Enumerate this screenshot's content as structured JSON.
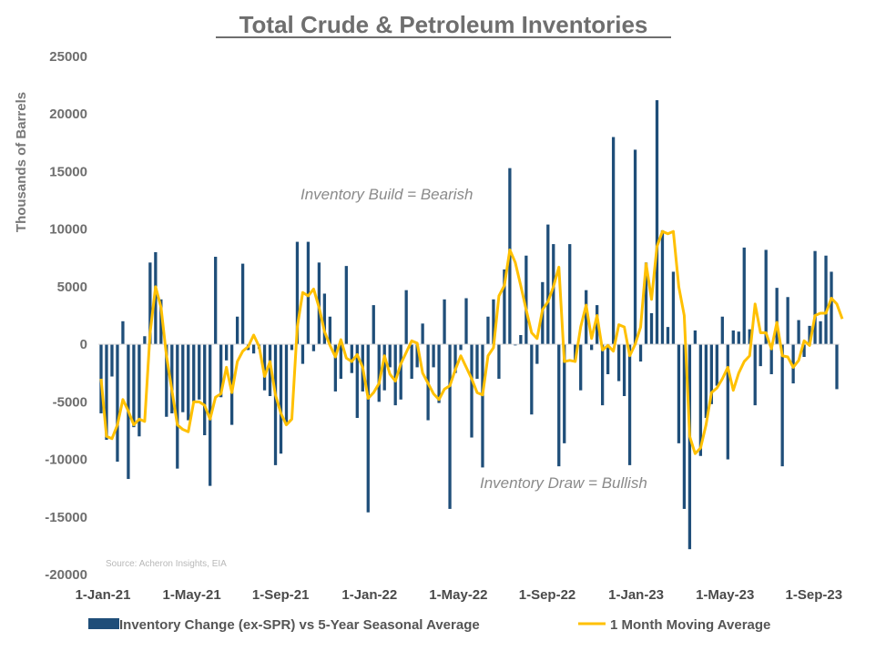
{
  "chart_data": {
    "type": "bar",
    "title": "Total Crude & Petroleum Inventories",
    "ylabel": "Thousands of Barrels",
    "xlabel": "",
    "ylim": [
      -20000,
      25000
    ],
    "yticks": [
      25000,
      20000,
      15000,
      10000,
      5000,
      0,
      -5000,
      -10000,
      -15000,
      -20000
    ],
    "xticks": [
      "1-Jan-21",
      "1-May-21",
      "1-Sep-21",
      "1-Jan-22",
      "1-May-22",
      "1-Sep-22",
      "1-Jan-23",
      "1-May-23",
      "1-Sep-23"
    ],
    "grid": false,
    "legend_position": "bottom",
    "annotations": [
      "Inventory Build = Bearish",
      "Inventory Draw = Bullish"
    ],
    "source": "Source: Acheron Insights, EIA",
    "colors": {
      "bars": "#1f4e79",
      "line": "#ffc000"
    },
    "series": [
      {
        "name": "Inventory Change (ex-SPR) vs 5-Year Seasonal Average",
        "type": "bar",
        "values": [
          -6000,
          -8300,
          -2800,
          -10200,
          2000,
          -11700,
          -7200,
          -8000,
          700,
          7100,
          8000,
          3900,
          -6300,
          -6000,
          -10800,
          -5900,
          -6600,
          -5000,
          -4800,
          -7900,
          -12300,
          7600,
          -4600,
          -1400,
          -7000,
          2400,
          7000,
          -500,
          -800,
          -400,
          -4000,
          -4500,
          -10500,
          -9500,
          -7000,
          -500,
          8900,
          -1700,
          8900,
          -600,
          7100,
          4400,
          2400,
          -4100,
          -3000,
          6800,
          -2500,
          -6400,
          -4100,
          -14600,
          3400,
          -5000,
          -4000,
          -2000,
          -5300,
          -4800,
          4700,
          -3000,
          -2000,
          1800,
          -6600,
          -2000,
          -5100,
          3900,
          -14300,
          -2500,
          -500,
          4000,
          -8100,
          -3000,
          -10700,
          2400,
          3900,
          -3000,
          6500,
          15300,
          -100,
          800,
          7700,
          -6100,
          -1700,
          5400,
          10400,
          8700,
          -10600,
          -8600,
          8700,
          -1400,
          -4000,
          4700,
          -500,
          3400,
          -5300,
          -2600,
          18000,
          -3200,
          -4500,
          -10500,
          16900,
          -1500,
          7100,
          2700,
          21200,
          9900,
          1500,
          6300,
          -8600,
          -14300,
          -17800,
          1200,
          -9700,
          -6400,
          -5200,
          -3600,
          2400,
          -10000,
          1200,
          1100,
          8400,
          1300,
          -5300,
          -1900,
          8200,
          -2600,
          4900,
          -10600,
          4100,
          -3400,
          2100,
          -1100,
          1600,
          8100,
          2000,
          7700,
          6300,
          -3900
        ]
      },
      {
        "name": "1 Month Moving Average",
        "type": "line",
        "values": [
          -3000,
          -8000,
          -8200,
          -7000,
          -4800,
          -5800,
          -7000,
          -6500,
          -6700,
          1000,
          5000,
          3200,
          -1000,
          -4000,
          -7000,
          -7400,
          -7600,
          -5000,
          -5000,
          -5300,
          -6500,
          -4600,
          -4300,
          -2000,
          -4200,
          -1500,
          -600,
          -200,
          800,
          -200,
          -2800,
          -1500,
          -4400,
          -6000,
          -7000,
          -6500,
          1500,
          4500,
          4200,
          4800,
          3200,
          1100,
          -100,
          -1100,
          400,
          -1200,
          -1500,
          -900,
          -2000,
          -4700,
          -4200,
          -3400,
          -1000,
          -2600,
          -3200,
          -1700,
          -700,
          300,
          100,
          -2500,
          -3400,
          -4300,
          -4800,
          -3900,
          -3600,
          -2200,
          -1000,
          -2000,
          -3000,
          -4200,
          -4400,
          -1000,
          -300,
          4200,
          5100,
          8200,
          7100,
          5100,
          3000,
          1000,
          500,
          3000,
          3700,
          5000,
          6700,
          -1500,
          -1400,
          -1500,
          1500,
          3400,
          500,
          2500,
          -500,
          -100,
          -600,
          1700,
          1500,
          -1000,
          0,
          1500,
          7000,
          3900,
          8500,
          9800,
          9600,
          9800,
          5000,
          2500,
          -8000,
          -9500,
          -9000,
          -7000,
          -4200,
          -3800,
          -3000,
          -2000,
          -4000,
          -2500,
          -1500,
          -1000,
          3500,
          1000,
          1000,
          -400,
          1900,
          -1000,
          -1100,
          -2000,
          -1400,
          300,
          -100,
          2500,
          2700,
          2700,
          4000,
          3500,
          2200
        ]
      }
    ]
  }
}
